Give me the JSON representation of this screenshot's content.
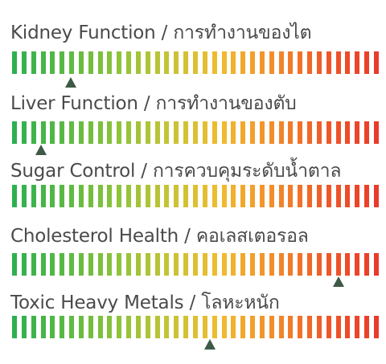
{
  "metrics": [
    {
      "title": "Kidney Function / การทำงานของไต",
      "level": 0.16
    },
    {
      "title": "Liver Function / การทำงานของตับ",
      "level": 0.08
    },
    {
      "title": "Sugar Control / การควบคุมระดับน้ำตาล",
      "level": null
    },
    {
      "title": "Cholesterol Health / คอเลสเตอรอล",
      "level": 0.89
    },
    {
      "title": "Toxic Heavy Metals / โลหะหนัก",
      "level": 0.54
    }
  ],
  "gauge": {
    "segment_count": 39,
    "color_stops": [
      "#2eb04f",
      "#5cb943",
      "#8cc43a",
      "#c5c436",
      "#f2bb2e",
      "#f28c2a",
      "#ee5a29",
      "#e93b2b"
    ],
    "marker_color": "#3e5a46"
  }
}
